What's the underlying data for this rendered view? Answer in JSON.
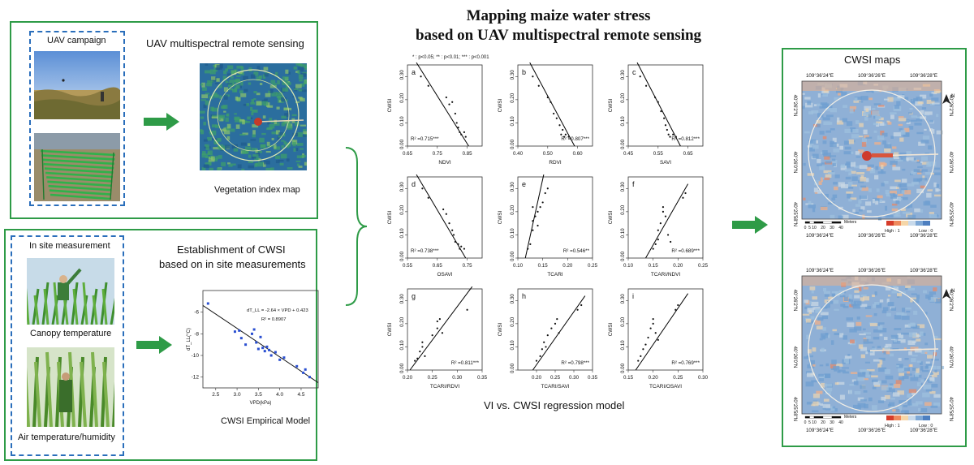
{
  "title": {
    "line1": "Mapping maize water stress",
    "line2": "based on UAV multispectral remote sensing"
  },
  "uav_panel": {
    "campaign_label": "UAV campaign",
    "heading": "UAV multispectral remote sensing",
    "map_caption": "Vegetation index map"
  },
  "site_panel": {
    "measure_label": "In site measurement",
    "heading_line1": "Establishment of CWSI",
    "heading_line2": "based on in site measurements",
    "canopy_caption": "Canopy temperature",
    "air_caption": "Air temperature/humidity",
    "model_caption": "CWSI Empirical Model"
  },
  "regression": {
    "significance_note": "* : p<0.05;  ** : p<0.01;  *** : p<0.001",
    "caption": "VI vs. CWSI regression model"
  },
  "cwsi_panel": {
    "heading": "CWSI maps",
    "lon_labels": [
      "109°36'24\"E",
      "109°36'26\"E",
      "109°36'28\"E"
    ],
    "lat_labels_top": [
      "40°26'2\"N",
      "40°26'0\"N",
      "40°25'58\"N"
    ],
    "lat_labels_bottom": [
      "40°26'2\"N",
      "40°26'0\"N",
      "40°25'58\"N"
    ],
    "scale_ticks": [
      "0",
      "5",
      "10",
      "20",
      "30",
      "40"
    ],
    "scale_unit": "Meters",
    "legend_high": "High : 1",
    "legend_low": "Low : 0",
    "north": "N"
  },
  "colors": {
    "panel_border": "#2e9b47",
    "dashed_border": "#2a6ebb",
    "arrow": "#2e9b47",
    "regression_line": "#000000",
    "empirical_points": "#2a4fd1"
  },
  "icons": [
    "right-arrow-icon",
    "curly-brace-icon",
    "north-arrow-icon"
  ],
  "chart_data": [
    {
      "type": "scatter",
      "panel": "CWSI empirical model",
      "xlabel": "VPD(kPa)",
      "ylabel": "dT_LL(°C)",
      "equation": "dT_LL = -2.64 × VPD + 0.423",
      "r2_text": "R² = 0.8907",
      "xlim": [
        2.2,
        4.9
      ],
      "ylim": [
        -13,
        -4
      ],
      "xticks": [
        2.5,
        3.0,
        3.5,
        4.0,
        4.5
      ],
      "yticks": [
        -6,
        -8,
        -10,
        -12
      ],
      "line": {
        "slope": -2.64,
        "intercept": 0.423
      },
      "x": [
        2.32,
        2.95,
        3.05,
        3.1,
        3.2,
        3.35,
        3.4,
        3.45,
        3.5,
        3.55,
        3.6,
        3.65,
        3.7,
        3.75,
        3.8,
        3.9,
        4.0,
        4.1,
        4.4,
        4.55,
        4.6,
        4.7
      ],
      "y": [
        -5.2,
        -7.8,
        -7.7,
        -8.4,
        -9.0,
        -8.0,
        -7.6,
        -8.8,
        -9.4,
        -8.3,
        -9.3,
        -9.6,
        -9.2,
        -9.5,
        -10.0,
        -9.7,
        -10.4,
        -10.2,
        -11.0,
        -11.6,
        -11.3,
        -12.0
      ]
    },
    {
      "type": "scatter",
      "letter": "a",
      "xlabel": "NDVI",
      "ylabel": "CWSI",
      "r2_text": "R² =0.715***",
      "xlim": [
        0.65,
        0.9
      ],
      "ylim": [
        0,
        0.35
      ],
      "xticks": [
        0.65,
        0.75,
        0.85
      ],
      "yticks": [
        0.0,
        0.1,
        0.2,
        0.3
      ],
      "line": [
        [
          0.68,
          0.36
        ],
        [
          0.855,
          0.0
        ]
      ],
      "x": [
        0.695,
        0.72,
        0.78,
        0.79,
        0.8,
        0.81,
        0.815,
        0.82,
        0.825,
        0.83,
        0.84,
        0.845
      ],
      "y": [
        0.3,
        0.26,
        0.21,
        0.18,
        0.19,
        0.14,
        0.1,
        0.08,
        0.06,
        0.05,
        0.06,
        0.04
      ]
    },
    {
      "type": "scatter",
      "letter": "b",
      "xlabel": "RDVI",
      "ylabel": "CWSI",
      "r2_text": "R² =0.807***",
      "xlim": [
        0.4,
        0.65
      ],
      "ylim": [
        0,
        0.35
      ],
      "xticks": [
        0.4,
        0.5,
        0.6
      ],
      "yticks": [
        0.0,
        0.1,
        0.2,
        0.3
      ],
      "line": [
        [
          0.44,
          0.36
        ],
        [
          0.59,
          0.0
        ]
      ],
      "x": [
        0.45,
        0.47,
        0.5,
        0.51,
        0.52,
        0.53,
        0.54,
        0.545,
        0.55,
        0.555,
        0.56,
        0.57
      ],
      "y": [
        0.3,
        0.26,
        0.21,
        0.19,
        0.14,
        0.12,
        0.09,
        0.05,
        0.07,
        0.04,
        0.05,
        0.04
      ]
    },
    {
      "type": "scatter",
      "letter": "c",
      "xlabel": "SAVI",
      "ylabel": "CWSI",
      "r2_text": "R² =0.812***",
      "xlim": [
        0.45,
        0.7
      ],
      "ylim": [
        0,
        0.35
      ],
      "xticks": [
        0.45,
        0.55,
        0.65
      ],
      "yticks": [
        0.0,
        0.1,
        0.2,
        0.3
      ],
      "line": [
        [
          0.48,
          0.36
        ],
        [
          0.625,
          0.0
        ]
      ],
      "x": [
        0.49,
        0.51,
        0.54,
        0.55,
        0.56,
        0.57,
        0.575,
        0.58,
        0.585,
        0.59,
        0.6,
        0.61
      ],
      "y": [
        0.3,
        0.26,
        0.21,
        0.19,
        0.15,
        0.12,
        0.09,
        0.07,
        0.05,
        0.04,
        0.05,
        0.04
      ]
    },
    {
      "type": "scatter",
      "letter": "d",
      "xlabel": "OSAVI",
      "ylabel": "CWSI",
      "r2_text": "R² =0.738***",
      "xlim": [
        0.55,
        0.8
      ],
      "ylim": [
        0,
        0.35
      ],
      "xticks": [
        0.55,
        0.65,
        0.75
      ],
      "yticks": [
        0.0,
        0.1,
        0.2,
        0.3
      ],
      "line": [
        [
          0.58,
          0.36
        ],
        [
          0.745,
          0.0
        ]
      ],
      "x": [
        0.6,
        0.62,
        0.67,
        0.68,
        0.69,
        0.7,
        0.705,
        0.71,
        0.72,
        0.725,
        0.73,
        0.74
      ],
      "y": [
        0.3,
        0.26,
        0.21,
        0.19,
        0.15,
        0.12,
        0.1,
        0.07,
        0.06,
        0.04,
        0.05,
        0.04
      ]
    },
    {
      "type": "scatter",
      "letter": "e",
      "xlabel": "TCARI",
      "ylabel": "CWSI",
      "r2_text": "R² =0.546**",
      "xlim": [
        0.1,
        0.25
      ],
      "ylim": [
        0,
        0.35
      ],
      "xticks": [
        0.1,
        0.15,
        0.2,
        0.25
      ],
      "yticks": [
        0.0,
        0.1,
        0.2,
        0.3
      ],
      "line": [
        [
          0.115,
          0.0
        ],
        [
          0.152,
          0.36
        ]
      ],
      "x": [
        0.12,
        0.125,
        0.13,
        0.13,
        0.135,
        0.14,
        0.14,
        0.145,
        0.15,
        0.155,
        0.16,
        0.13
      ],
      "y": [
        0.04,
        0.06,
        0.12,
        0.16,
        0.18,
        0.2,
        0.14,
        0.22,
        0.24,
        0.28,
        0.3,
        0.22
      ]
    },
    {
      "type": "scatter",
      "letter": "f",
      "xlabel": "TCARI/NDVI",
      "ylabel": "CWSI",
      "r2_text": "R² =0.689***",
      "xlim": [
        0.1,
        0.25
      ],
      "ylim": [
        0,
        0.35
      ],
      "xticks": [
        0.1,
        0.15,
        0.2,
        0.25
      ],
      "yticks": [
        0.0,
        0.1,
        0.2,
        0.3
      ],
      "line": [
        [
          0.135,
          0.0
        ],
        [
          0.22,
          0.32
        ]
      ],
      "x": [
        0.15,
        0.155,
        0.16,
        0.16,
        0.165,
        0.17,
        0.17,
        0.175,
        0.18,
        0.185,
        0.21,
        0.215
      ],
      "y": [
        0.04,
        0.06,
        0.08,
        0.12,
        0.15,
        0.2,
        0.22,
        0.18,
        0.1,
        0.07,
        0.26,
        0.28
      ]
    },
    {
      "type": "scatter",
      "letter": "g",
      "xlabel": "TCARI/RDVI",
      "ylabel": "CWSI",
      "r2_text": "R² =0.811***",
      "xlim": [
        0.2,
        0.35
      ],
      "ylim": [
        0,
        0.35
      ],
      "xticks": [
        0.2,
        0.25,
        0.3,
        0.35
      ],
      "yticks": [
        0.0,
        0.1,
        0.2,
        0.3
      ],
      "line": [
        [
          0.205,
          0.0
        ],
        [
          0.33,
          0.36
        ]
      ],
      "x": [
        0.215,
        0.22,
        0.225,
        0.23,
        0.23,
        0.25,
        0.26,
        0.26,
        0.265,
        0.27,
        0.32,
        0.235
      ],
      "y": [
        0.04,
        0.05,
        0.08,
        0.1,
        0.12,
        0.15,
        0.18,
        0.21,
        0.22,
        0.16,
        0.26,
        0.06
      ]
    },
    {
      "type": "scatter",
      "letter": "h",
      "xlabel": "TCARI/SAVI",
      "ylabel": "CWSI",
      "r2_text": "R² =0.798***",
      "xlim": [
        0.15,
        0.35
      ],
      "ylim": [
        0,
        0.35
      ],
      "xticks": [
        0.2,
        0.25,
        0.3,
        0.35
      ],
      "yticks": [
        0.0,
        0.1,
        0.2,
        0.3
      ],
      "line": [
        [
          0.19,
          0.0
        ],
        [
          0.33,
          0.32
        ]
      ],
      "x": [
        0.2,
        0.21,
        0.215,
        0.22,
        0.225,
        0.23,
        0.24,
        0.25,
        0.255,
        0.26,
        0.31,
        0.32
      ],
      "y": [
        0.04,
        0.06,
        0.09,
        0.12,
        0.1,
        0.15,
        0.18,
        0.2,
        0.22,
        0.16,
        0.26,
        0.28
      ]
    },
    {
      "type": "scatter",
      "letter": "i",
      "xlabel": "TCARI/OSAVI",
      "ylabel": "CWSI",
      "r2_text": "R² =0.769***",
      "xlim": [
        0.15,
        0.3
      ],
      "ylim": [
        0,
        0.35
      ],
      "xticks": [
        0.15,
        0.2,
        0.25,
        0.3
      ],
      "yticks": [
        0.0,
        0.1,
        0.2,
        0.3
      ],
      "line": [
        [
          0.165,
          0.0
        ],
        [
          0.27,
          0.33
        ]
      ],
      "x": [
        0.17,
        0.175,
        0.18,
        0.185,
        0.19,
        0.195,
        0.2,
        0.2,
        0.205,
        0.21,
        0.245,
        0.25
      ],
      "y": [
        0.04,
        0.06,
        0.09,
        0.11,
        0.14,
        0.18,
        0.2,
        0.22,
        0.16,
        0.13,
        0.26,
        0.28
      ]
    }
  ]
}
